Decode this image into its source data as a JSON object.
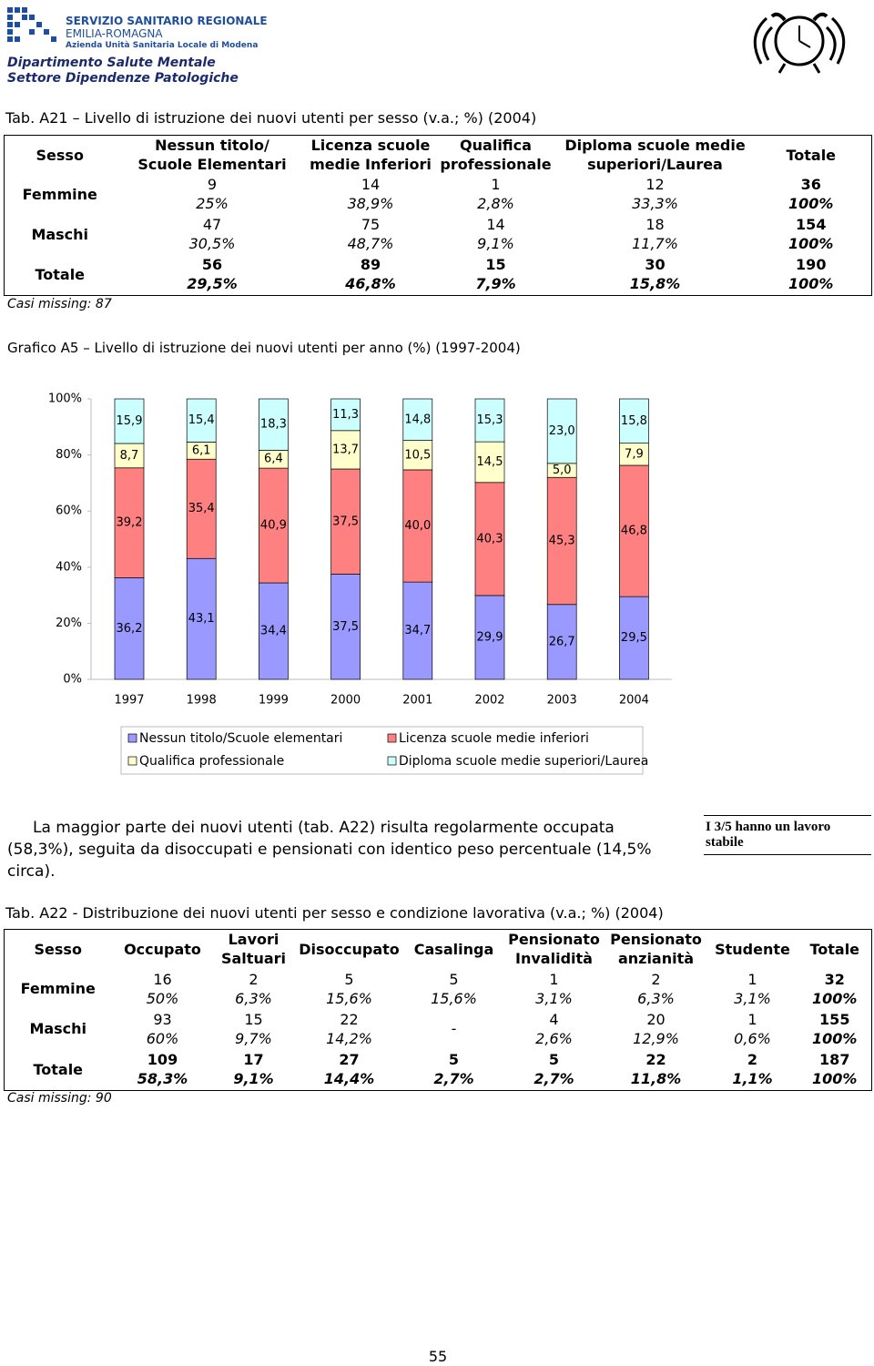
{
  "header": {
    "org": [
      "SERVIZIO SANITARIO REGIONALE",
      "EMILIA-ROMAGNA",
      "Azienda Unità Sanitaria Locale di Modena"
    ],
    "department": [
      "Dipartimento Salute Mentale",
      "Settore Dipendenze Patologiche"
    ]
  },
  "table1": {
    "title": "Tab. A21 – Livello di istruzione dei nuovi utenti per sesso (v.a.; %) (2004)",
    "corner": "Sesso",
    "columns": [
      "Nessun titolo/\nScuole Elementari",
      "Licenza scuole\nmedie Inferiori",
      "Qualifica\nprofessionale",
      "Diploma scuole medie\nsuperiori/Laurea",
      "Totale"
    ],
    "rows": [
      {
        "label": "Femmine",
        "cells": [
          [
            "9",
            "25%"
          ],
          [
            "14",
            "38,9%"
          ],
          [
            "1",
            "2,8%"
          ],
          [
            "12",
            "33,3%"
          ],
          [
            "36",
            "100%"
          ]
        ]
      },
      {
        "label": "Maschi",
        "cells": [
          [
            "47",
            "30,5%"
          ],
          [
            "75",
            "48,7%"
          ],
          [
            "14",
            "9,1%"
          ],
          [
            "18",
            "11,7%"
          ],
          [
            "154",
            "100%"
          ]
        ]
      },
      {
        "label": "Totale",
        "cells": [
          [
            "56",
            "29,5%"
          ],
          [
            "89",
            "46,8%"
          ],
          [
            "15",
            "7,9%"
          ],
          [
            "30",
            "15,8%"
          ],
          [
            "190",
            "100%"
          ]
        ]
      }
    ],
    "note": "Casi missing: 87"
  },
  "chart_data": {
    "type": "bar",
    "stacked": true,
    "title": "Grafico A5 – Livello di istruzione dei nuovi utenti per anno (%) (1997-2004)",
    "categories": [
      "1997",
      "1998",
      "1999",
      "2000",
      "2001",
      "2002",
      "2003",
      "2004"
    ],
    "series": [
      {
        "name": "Nessun titolo/Scuole elementari",
        "color": "#9999ff",
        "values": [
          36.2,
          43.1,
          34.4,
          37.5,
          34.7,
          29.9,
          26.7,
          29.5
        ],
        "value_labels": [
          "36,2",
          "43,1",
          "34,4",
          "37,5",
          "34,7",
          "29,9",
          "26,7",
          "29,5"
        ]
      },
      {
        "name": "Licenza scuole medie inferiori",
        "color": "#ff8080",
        "values": [
          39.2,
          35.4,
          40.9,
          37.5,
          40.0,
          40.3,
          45.3,
          46.8
        ],
        "value_labels": [
          "39,2",
          "35,4",
          "40,9",
          "37,5",
          "40,0",
          "40,3",
          "45,3",
          "46,8"
        ]
      },
      {
        "name": "Qualifica professionale",
        "color": "#ffffcc",
        "values": [
          8.7,
          6.1,
          6.4,
          13.7,
          10.5,
          14.5,
          5.0,
          7.9
        ],
        "value_labels": [
          "8,7",
          "6,1",
          "6,4",
          "13,7",
          "10,5",
          "14,5",
          "5,0",
          "7,9"
        ]
      },
      {
        "name": "Diploma scuole medie superiori/Laurea",
        "color": "#ccffff",
        "values": [
          15.9,
          15.4,
          18.3,
          11.3,
          14.8,
          15.3,
          23.0,
          15.8
        ],
        "value_labels": [
          "15,9",
          "15,4",
          "18,3",
          "11,3",
          "14,8",
          "15,3",
          "23,0",
          "15,8"
        ]
      }
    ],
    "ylim": [
      0,
      100
    ],
    "yticks": [
      {
        "value": 0,
        "label": "0%"
      },
      {
        "value": 20,
        "label": "20%"
      },
      {
        "value": 40,
        "label": "40%"
      },
      {
        "value": 60,
        "label": "60%"
      },
      {
        "value": 80,
        "label": "80%"
      },
      {
        "value": 100,
        "label": "100%"
      }
    ]
  },
  "paragraph": "La maggior parte dei nuovi utenti (tab. A22) risulta regolarmente occupata (58,3%), seguita da disoccupati e pensionati con identico peso percentuale (14,5% circa).",
  "side_note": "I 3/5 hanno un lavoro stabile",
  "table2": {
    "title": "Tab. A22 - Distribuzione dei nuovi utenti per sesso e condizione lavorativa (v.a.; %) (2004)",
    "corner": "Sesso",
    "columns": [
      "Occupato",
      "Lavori\nSaltuari",
      "Disoccupato",
      "Casalinga",
      "Pensionato\nInvalidità",
      "Pensionato\nanzianità",
      "Studente",
      "Totale"
    ],
    "rows": [
      {
        "label": "Femmine",
        "cells": [
          [
            "16",
            "50%"
          ],
          [
            "2",
            "6,3%"
          ],
          [
            "5",
            "15,6%"
          ],
          [
            "5",
            "15,6%"
          ],
          [
            "1",
            "3,1%"
          ],
          [
            "2",
            "6,3%"
          ],
          [
            "1",
            "3,1%"
          ],
          [
            "32",
            "100%"
          ]
        ]
      },
      {
        "label": "Maschi",
        "cells": [
          [
            "93",
            "60%"
          ],
          [
            "15",
            "9,7%"
          ],
          [
            "22",
            "14,2%"
          ],
          [
            "-"
          ],
          [
            "4",
            "2,6%"
          ],
          [
            "20",
            "12,9%"
          ],
          [
            "1",
            "0,6%"
          ],
          [
            "155",
            "100%"
          ]
        ]
      },
      {
        "label": "Totale",
        "cells": [
          [
            "109",
            "58,3%"
          ],
          [
            "17",
            "9,1%"
          ],
          [
            "27",
            "14,4%"
          ],
          [
            "5",
            "2,7%"
          ],
          [
            "5",
            "2,7%"
          ],
          [
            "22",
            "11,8%"
          ],
          [
            "2",
            "1,1%"
          ],
          [
            "187",
            "100%"
          ]
        ]
      }
    ],
    "note": "Casi missing: 90"
  },
  "page_number": "55"
}
